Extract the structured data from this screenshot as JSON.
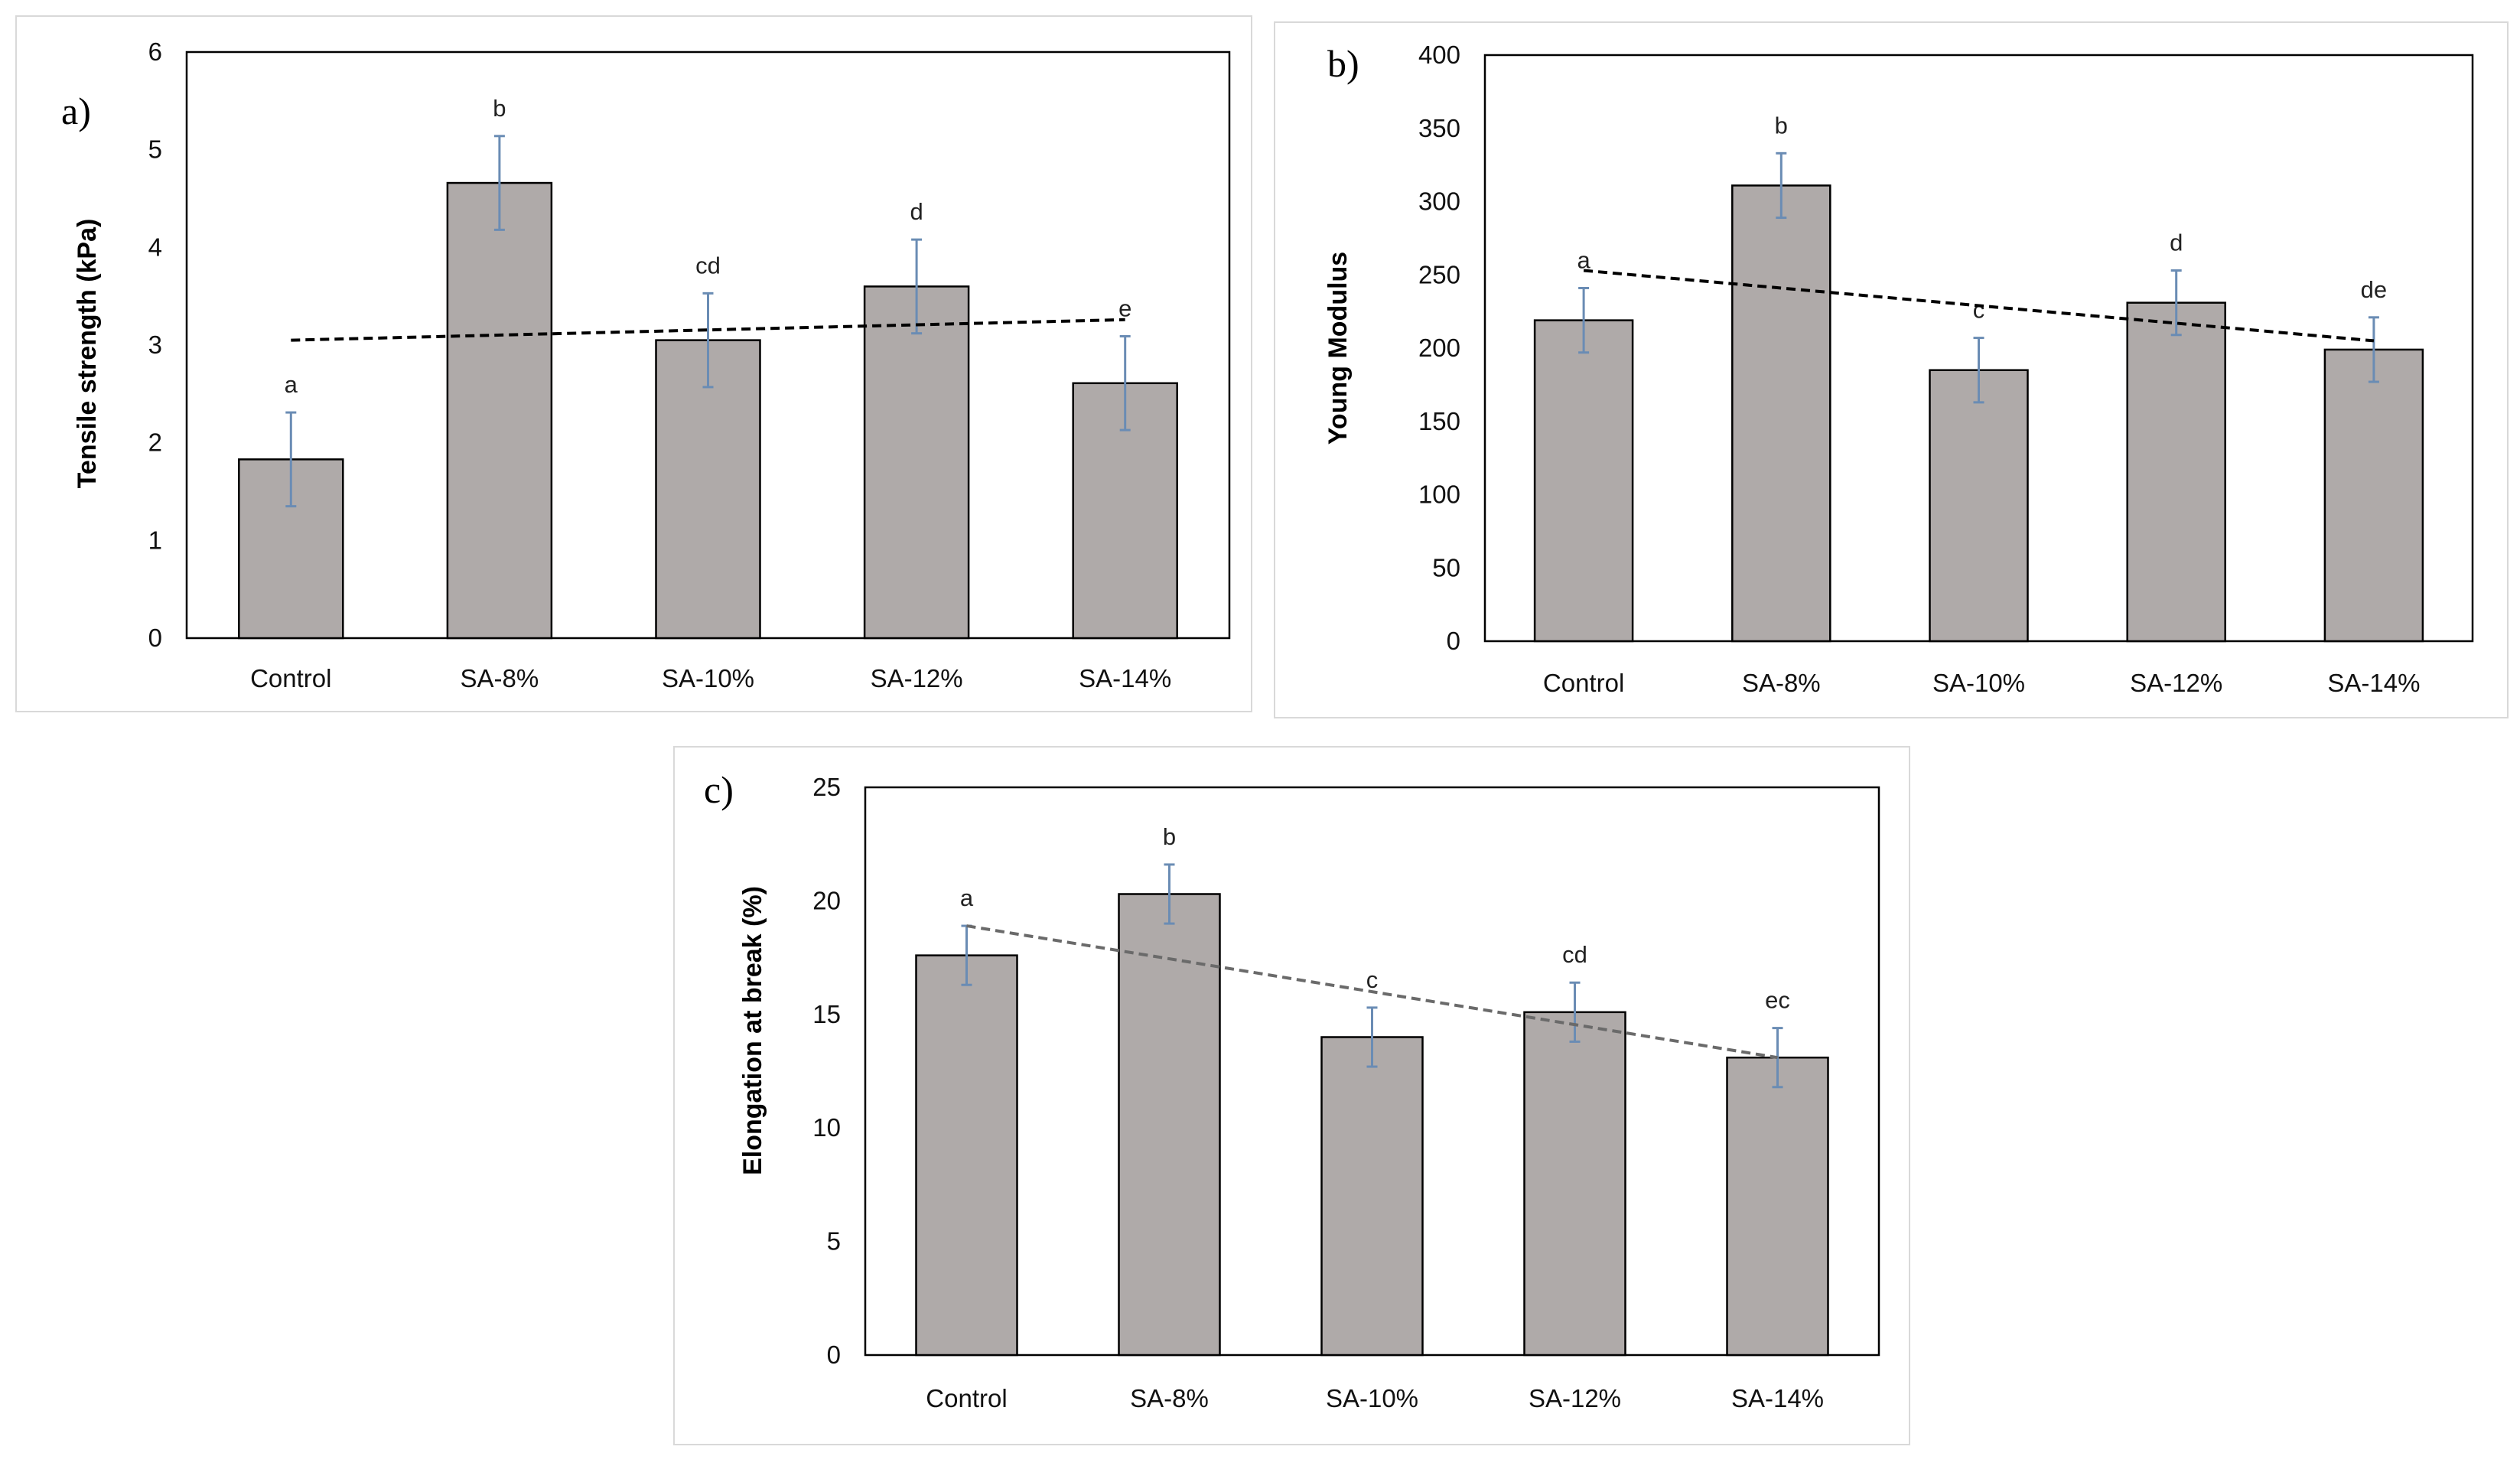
{
  "colors": {
    "bar_fill": "#afaaa9",
    "bar_stroke": "#000000",
    "error_bar": "#6a8cb4",
    "trend_dark": "#000000",
    "trend_gray": "#6a6a6a"
  },
  "chart_data": [
    {
      "type": "bar",
      "panel": "a)",
      "ylabel": "Tensile strength (kPa)",
      "xlabel": "",
      "categories": [
        "Control",
        "SA-8%",
        "SA-10%",
        "SA-12%",
        "SA-14%"
      ],
      "values": [
        1.83,
        4.66,
        3.05,
        3.6,
        2.61
      ],
      "errors": [
        0.48,
        0.48,
        0.48,
        0.48,
        0.48
      ],
      "significance": [
        "a",
        "b",
        "cd",
        "d",
        "e"
      ],
      "trendline": {
        "style": "dashed",
        "start": 3.05,
        "end": 3.26
      },
      "ylim": [
        0,
        6
      ],
      "yticks": [
        "0",
        "1",
        "2",
        "3",
        "4",
        "5",
        "6"
      ],
      "grid": false
    },
    {
      "type": "bar",
      "panel": "b)",
      "ylabel": "Young Modulus",
      "xlabel": "",
      "categories": [
        "Control",
        "SA-8%",
        "SA-10%",
        "SA-12%",
        "SA-14%"
      ],
      "values": [
        219,
        311,
        185,
        231,
        199
      ],
      "errors": [
        22,
        22,
        22,
        22,
        22
      ],
      "significance": [
        "a",
        "b",
        "c",
        "d",
        "de"
      ],
      "trendline": {
        "style": "dashed",
        "start": 253,
        "end": 205
      },
      "ylim": [
        0,
        400
      ],
      "yticks": [
        "0",
        "50",
        "100",
        "150",
        "200",
        "250",
        "300",
        "350",
        "400"
      ],
      "grid": false
    },
    {
      "type": "bar",
      "panel": "c)",
      "ylabel": "Elongation at break (%)",
      "xlabel": "",
      "categories": [
        "Control",
        "SA-8%",
        "SA-10%",
        "SA-12%",
        "SA-14%"
      ],
      "values": [
        17.6,
        20.3,
        14.0,
        15.1,
        13.1
      ],
      "errors": [
        1.3,
        1.3,
        1.3,
        1.3,
        1.3
      ],
      "significance": [
        "a",
        "b",
        "c",
        "cd",
        "ec"
      ],
      "trendline": {
        "style": "dashed",
        "start": 18.9,
        "end": 13.1
      },
      "ylim": [
        0,
        25
      ],
      "yticks": [
        "0",
        "5",
        "10",
        "15",
        "20",
        "25"
      ],
      "grid": false
    }
  ]
}
